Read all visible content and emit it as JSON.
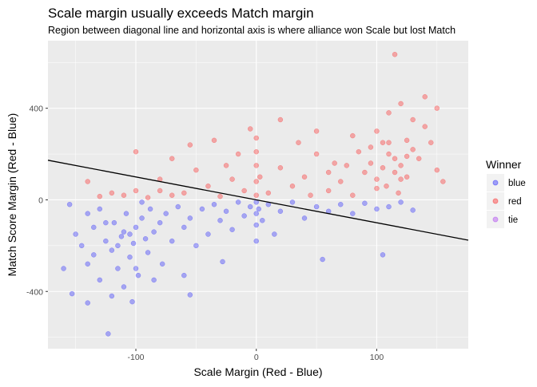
{
  "chart_data": {
    "type": "scatter",
    "title": "Scale margin usually exceeds Match margin",
    "subtitle": "Region between diagonal line and horizontal axis is where alliance won Scale but lost Match",
    "xlabel": "Scale Margin (Red - Blue)",
    "ylabel": "Match Score Margin (Red - Blue)",
    "xlim": [
      -173,
      176
    ],
    "ylim": [
      -650,
      695
    ],
    "x_ticks": [
      -100,
      0,
      100
    ],
    "y_ticks": [
      -400,
      0,
      400
    ],
    "grid": true,
    "legend": {
      "title": "Winner",
      "position": "right"
    },
    "reference_line": {
      "slope": -1,
      "intercept": 0,
      "color": "#000000"
    },
    "note": "",
    "series": [
      {
        "name": "blue",
        "color": "#0000FF",
        "points": [
          [
            -150,
            -150
          ],
          [
            -145,
            -200
          ],
          [
            -140,
            -280
          ],
          [
            -135,
            -120
          ],
          [
            -130,
            -350
          ],
          [
            -125,
            -180
          ],
          [
            -120,
            -220
          ],
          [
            -118,
            -100
          ],
          [
            -115,
            -300
          ],
          [
            -112,
            -160
          ],
          [
            -110,
            -140
          ],
          [
            -108,
            -60
          ],
          [
            -105,
            -250
          ],
          [
            -102,
            -190
          ],
          [
            -100,
            -120
          ],
          [
            -98,
            -330
          ],
          [
            -95,
            -80
          ],
          [
            -92,
            -170
          ],
          [
            -90,
            -230
          ],
          [
            -88,
            -40
          ],
          [
            -85,
            -140
          ],
          [
            -80,
            -100
          ],
          [
            -78,
            -280
          ],
          [
            -75,
            -60
          ],
          [
            -70,
            -180
          ],
          [
            -65,
            -30
          ],
          [
            -60,
            -120
          ],
          [
            -55,
            -80
          ],
          [
            -50,
            -200
          ],
          [
            -45,
            -40
          ],
          [
            -40,
            -150
          ],
          [
            -35,
            -20
          ],
          [
            -30,
            -90
          ],
          [
            -25,
            -50
          ],
          [
            -20,
            -130
          ],
          [
            -15,
            -10
          ],
          [
            -10,
            -70
          ],
          [
            -5,
            -30
          ],
          [
            0,
            -10
          ],
          [
            0,
            -60
          ],
          [
            0,
            -110
          ],
          [
            0,
            -180
          ],
          [
            2,
            -40
          ],
          [
            5,
            -90
          ],
          [
            10,
            -20
          ],
          [
            15,
            -150
          ],
          [
            20,
            -50
          ],
          [
            30,
            -10
          ],
          [
            40,
            -80
          ],
          [
            50,
            -30
          ],
          [
            55,
            -260
          ],
          [
            60,
            -50
          ],
          [
            70,
            -20
          ],
          [
            80,
            -60
          ],
          [
            90,
            -15
          ],
          [
            100,
            -40
          ],
          [
            105,
            -240
          ],
          [
            110,
            -30
          ],
          [
            120,
            -10
          ],
          [
            130,
            -45
          ],
          [
            -155,
            -20
          ],
          [
            -153,
            -410
          ],
          [
            -140,
            -450
          ],
          [
            -123,
            -585
          ],
          [
            -103,
            -445
          ],
          [
            -60,
            -330
          ],
          [
            -28,
            -270
          ],
          [
            -55,
            -415
          ],
          [
            -160,
            -300
          ],
          [
            -130,
            -40
          ],
          [
            -120,
            -420
          ],
          [
            -110,
            -380
          ],
          [
            -95,
            -10
          ],
          [
            -100,
            -300
          ],
          [
            -85,
            -350
          ],
          [
            -140,
            -60
          ],
          [
            -135,
            -240
          ],
          [
            -115,
            -200
          ],
          [
            -105,
            -150
          ],
          [
            -125,
            -100
          ]
        ]
      },
      {
        "name": "red",
        "color": "#FF0000",
        "points": [
          [
            115,
            635
          ],
          [
            120,
            420
          ],
          [
            110,
            380
          ],
          [
            100,
            300
          ],
          [
            105,
            250
          ],
          [
            110,
            200
          ],
          [
            115,
            180
          ],
          [
            120,
            150
          ],
          [
            125,
            100
          ],
          [
            130,
            220
          ],
          [
            95,
            160
          ],
          [
            90,
            120
          ],
          [
            100,
            90
          ],
          [
            108,
            60
          ],
          [
            118,
            30
          ],
          [
            125,
            260
          ],
          [
            135,
            180
          ],
          [
            140,
            320
          ],
          [
            145,
            250
          ],
          [
            150,
            130
          ],
          [
            155,
            80
          ],
          [
            150,
            400
          ],
          [
            140,
            450
          ],
          [
            130,
            350
          ],
          [
            85,
            210
          ],
          [
            80,
            280
          ],
          [
            75,
            150
          ],
          [
            70,
            80
          ],
          [
            60,
            120
          ],
          [
            50,
            200
          ],
          [
            40,
            100
          ],
          [
            30,
            60
          ],
          [
            20,
            140
          ],
          [
            10,
            30
          ],
          [
            0,
            20
          ],
          [
            0,
            80
          ],
          [
            0,
            150
          ],
          [
            0,
            210
          ],
          [
            0,
            270
          ],
          [
            3,
            100
          ],
          [
            -10,
            40
          ],
          [
            -20,
            90
          ],
          [
            -30,
            15
          ],
          [
            -40,
            60
          ],
          [
            -50,
            130
          ],
          [
            -60,
            30
          ],
          [
            -70,
            20
          ],
          [
            -80,
            90
          ],
          [
            -90,
            10
          ],
          [
            -100,
            40
          ],
          [
            -110,
            20
          ],
          [
            -120,
            30
          ],
          [
            -130,
            15
          ],
          [
            -100,
            210
          ],
          [
            -70,
            180
          ],
          [
            -55,
            240
          ],
          [
            -35,
            260
          ],
          [
            -25,
            150
          ],
          [
            -15,
            200
          ],
          [
            20,
            350
          ],
          [
            35,
            250
          ],
          [
            50,
            300
          ],
          [
            65,
            160
          ],
          [
            115,
            120
          ],
          [
            120,
            90
          ],
          [
            110,
            250
          ],
          [
            105,
            140
          ],
          [
            95,
            230
          ],
          [
            125,
            190
          ],
          [
            100,
            50
          ],
          [
            -140,
            80
          ],
          [
            -5,
            310
          ],
          [
            60,
            40
          ],
          [
            80,
            20
          ],
          [
            45,
            20
          ],
          [
            -80,
            40
          ]
        ]
      },
      {
        "name": "tie",
        "color": "#A020F0",
        "points": []
      }
    ]
  }
}
